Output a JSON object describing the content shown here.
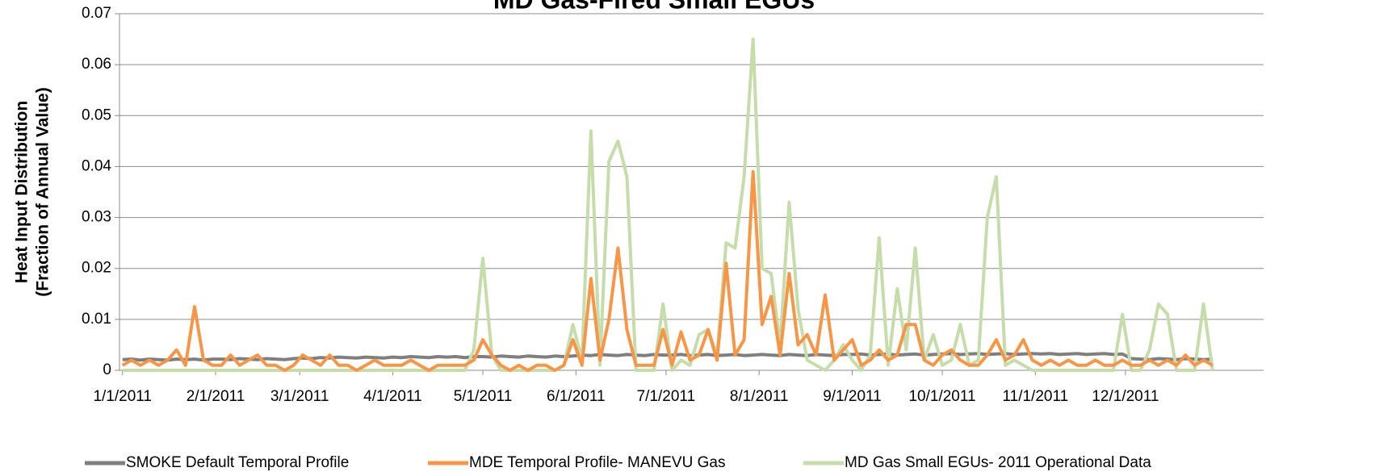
{
  "chart_data": {
    "type": "line",
    "title": "MD Gas-Fired Small EGUs",
    "ylabel": [
      "Heat Input Distribution",
      "(Fraction of Annual Value)"
    ],
    "xlim": [
      "12/31/2010",
      "1/16/2012"
    ],
    "xticks": [
      "1/1/2011",
      "2/1/2011",
      "3/1/2011",
      "4/1/2011",
      "5/1/2011",
      "6/1/2011",
      "7/1/2011",
      "8/1/2011",
      "9/1/2011",
      "10/1/2011",
      "11/1/2011",
      "12/1/2011"
    ],
    "ylim": [
      0,
      0.07
    ],
    "yticks": [
      0,
      0.01,
      0.02,
      0.03,
      0.04,
      0.05,
      0.06,
      0.07
    ],
    "grid": true,
    "legend": "bottom",
    "x": [
      "1/1/2011",
      "1/4/2011",
      "1/7/2011",
      "1/10/2011",
      "1/13/2011",
      "1/16/2011",
      "1/19/2011",
      "1/22/2011",
      "1/25/2011",
      "1/28/2011",
      "1/31/2011",
      "2/3/2011",
      "2/6/2011",
      "2/9/2011",
      "2/12/2011",
      "2/15/2011",
      "2/18/2011",
      "2/21/2011",
      "2/24/2011",
      "2/27/2011",
      "3/2/2011",
      "3/5/2011",
      "3/8/2011",
      "3/11/2011",
      "3/14/2011",
      "3/17/2011",
      "3/20/2011",
      "3/23/2011",
      "3/26/2011",
      "3/29/2011",
      "4/1/2011",
      "4/4/2011",
      "4/7/2011",
      "4/10/2011",
      "4/13/2011",
      "4/16/2011",
      "4/19/2011",
      "4/22/2011",
      "4/25/2011",
      "4/28/2011",
      "5/1/2011",
      "5/4/2011",
      "5/7/2011",
      "5/10/2011",
      "5/13/2011",
      "5/16/2011",
      "5/19/2011",
      "5/22/2011",
      "5/25/2011",
      "5/28/2011",
      "5/31/2011",
      "6/3/2011",
      "6/6/2011",
      "6/9/2011",
      "6/12/2011",
      "6/15/2011",
      "6/18/2011",
      "6/21/2011",
      "6/24/2011",
      "6/27/2011",
      "6/30/2011",
      "7/3/2011",
      "7/6/2011",
      "7/9/2011",
      "7/12/2011",
      "7/15/2011",
      "7/18/2011",
      "7/21/2011",
      "7/24/2011",
      "7/27/2011",
      "7/30/2011",
      "8/2/2011",
      "8/5/2011",
      "8/8/2011",
      "8/11/2011",
      "8/14/2011",
      "8/17/2011",
      "8/20/2011",
      "8/23/2011",
      "8/26/2011",
      "8/29/2011",
      "9/1/2011",
      "9/4/2011",
      "9/7/2011",
      "9/10/2011",
      "9/13/2011",
      "9/16/2011",
      "9/19/2011",
      "9/22/2011",
      "9/25/2011",
      "9/28/2011",
      "10/1/2011",
      "10/4/2011",
      "10/7/2011",
      "10/10/2011",
      "10/13/2011",
      "10/16/2011",
      "10/19/2011",
      "10/22/2011",
      "10/25/2011",
      "10/28/2011",
      "10/31/2011",
      "11/3/2011",
      "11/6/2011",
      "11/9/2011",
      "11/12/2011",
      "11/15/2011",
      "11/18/2011",
      "11/21/2011",
      "11/24/2011",
      "11/27/2011",
      "11/30/2011",
      "12/3/2011",
      "12/6/2011",
      "12/9/2011",
      "12/12/2011",
      "12/15/2011",
      "12/18/2011",
      "12/21/2011",
      "12/24/2011",
      "12/27/2011",
      "12/30/2011"
    ],
    "series": [
      {
        "name": "SMOKE Default Temporal Profile",
        "color": "#7f7f7f",
        "values": [
          0.0021,
          0.0022,
          0.002,
          0.0022,
          0.0021,
          0.002,
          0.0022,
          0.0021,
          0.0022,
          0.002,
          0.0022,
          0.0022,
          0.0021,
          0.0023,
          0.0022,
          0.0021,
          0.0023,
          0.0022,
          0.0021,
          0.0023,
          0.0024,
          0.0023,
          0.0025,
          0.0024,
          0.0026,
          0.0025,
          0.0024,
          0.0026,
          0.0025,
          0.0024,
          0.0026,
          0.0025,
          0.0027,
          0.0026,
          0.0025,
          0.0027,
          0.0026,
          0.0027,
          0.0025,
          0.0027,
          0.0027,
          0.0026,
          0.0028,
          0.0027,
          0.0026,
          0.0028,
          0.0027,
          0.0026,
          0.0028,
          0.0027,
          0.0028,
          0.003,
          0.0029,
          0.0031,
          0.003,
          0.0029,
          0.0031,
          0.003,
          0.0029,
          0.0031,
          0.003,
          0.003,
          0.0031,
          0.0029,
          0.003,
          0.0031,
          0.0029,
          0.003,
          0.0031,
          0.0029,
          0.003,
          0.0031,
          0.003,
          0.0029,
          0.0031,
          0.003,
          0.0029,
          0.0031,
          0.003,
          0.0029,
          0.0031,
          0.0031,
          0.0032,
          0.003,
          0.0031,
          0.0032,
          0.003,
          0.0031,
          0.0032,
          0.003,
          0.0031,
          0.0032,
          0.0033,
          0.0031,
          0.0032,
          0.0033,
          0.0031,
          0.0032,
          0.0033,
          0.0031,
          0.0032,
          0.0033,
          0.0032,
          0.0033,
          0.0031,
          0.0032,
          0.0033,
          0.0031,
          0.0032,
          0.0033,
          0.0031,
          0.0032,
          0.0023,
          0.0022,
          0.0021,
          0.0023,
          0.0022,
          0.0021,
          0.0023,
          0.0022,
          0.0021,
          0.0022
        ]
      },
      {
        "name": "MDE Temporal Profile- MANEVU Gas",
        "color": "#f79646",
        "values": [
          0.001,
          0.002,
          0.001,
          0.002,
          0.001,
          0.002,
          0.004,
          0.001,
          0.0125,
          0.002,
          0.001,
          0.001,
          0.003,
          0.001,
          0.002,
          0.003,
          0.001,
          0.001,
          0.0,
          0.001,
          0.003,
          0.002,
          0.001,
          0.003,
          0.001,
          0.001,
          0.0,
          0.001,
          0.002,
          0.001,
          0.001,
          0.001,
          0.002,
          0.001,
          0.0,
          0.001,
          0.001,
          0.001,
          0.001,
          0.002,
          0.006,
          0.003,
          0.001,
          0.0,
          0.001,
          0.0,
          0.001,
          0.001,
          0.0,
          0.001,
          0.006,
          0.001,
          0.018,
          0.002,
          0.01,
          0.024,
          0.008,
          0.001,
          0.001,
          0.001,
          0.008,
          0.001,
          0.0075,
          0.002,
          0.003,
          0.008,
          0.002,
          0.021,
          0.003,
          0.006,
          0.039,
          0.009,
          0.0145,
          0.003,
          0.019,
          0.005,
          0.007,
          0.003,
          0.0148,
          0.002,
          0.004,
          0.006,
          0.001,
          0.002,
          0.004,
          0.002,
          0.003,
          0.009,
          0.009,
          0.002,
          0.001,
          0.003,
          0.004,
          0.002,
          0.001,
          0.001,
          0.003,
          0.006,
          0.002,
          0.003,
          0.006,
          0.002,
          0.001,
          0.002,
          0.001,
          0.002,
          0.001,
          0.001,
          0.002,
          0.001,
          0.001,
          0.002,
          0.001,
          0.001,
          0.002,
          0.001,
          0.002,
          0.001,
          0.003,
          0.001,
          0.002,
          0.001
        ]
      },
      {
        "name": "MD Gas Small EGUs- 2011 Operational Data",
        "color": "#c6dcab",
        "values": [
          0,
          0,
          0,
          0,
          0,
          0,
          0,
          0,
          0,
          0,
          0,
          0,
          0,
          0,
          0,
          0,
          0,
          0,
          0,
          0,
          0,
          0,
          0,
          0,
          0,
          0,
          0,
          0,
          0,
          0,
          0,
          0,
          0,
          0,
          0,
          0,
          0,
          0,
          0,
          0.004,
          0.022,
          0.003,
          0,
          0,
          0,
          0,
          0,
          0,
          0,
          0.001,
          0.009,
          0.002,
          0.047,
          0.001,
          0.041,
          0.045,
          0.038,
          0,
          0,
          0,
          0.013,
          0,
          0.002,
          0.001,
          0.007,
          0.008,
          0.003,
          0.025,
          0.024,
          0.038,
          0.065,
          0.02,
          0.019,
          0.005,
          0.033,
          0.012,
          0.002,
          0.001,
          0,
          0.002,
          0.005,
          0.002,
          0,
          0.003,
          0.026,
          0.001,
          0.016,
          0.004,
          0.024,
          0.002,
          0.007,
          0.001,
          0.002,
          0.009,
          0.001,
          0.002,
          0.03,
          0.038,
          0.001,
          0.002,
          0.001,
          0,
          0,
          0,
          0,
          0,
          0,
          0,
          0,
          0,
          0,
          0.011,
          0,
          0,
          0.004,
          0.013,
          0.011,
          0,
          0,
          0,
          0.013,
          0
        ]
      }
    ]
  }
}
